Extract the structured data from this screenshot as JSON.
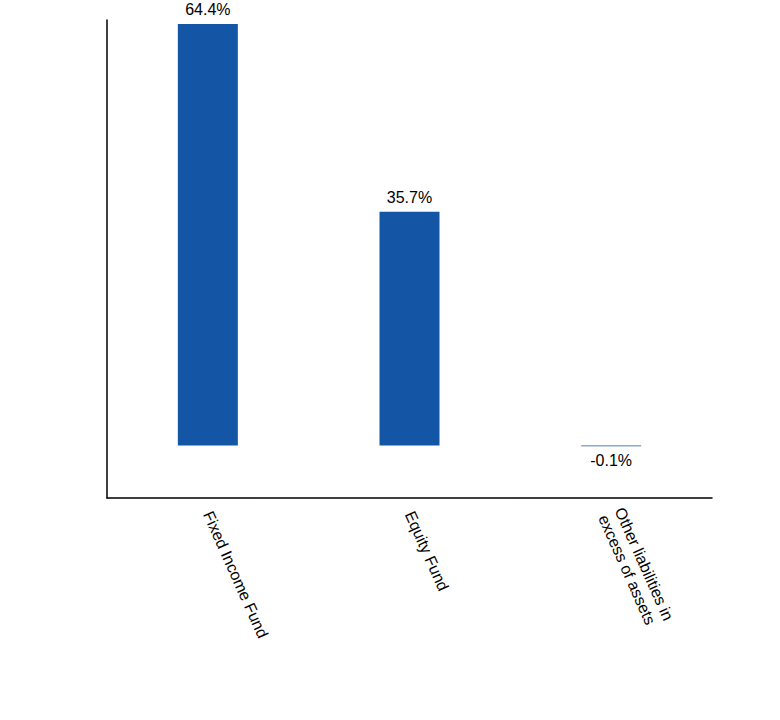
{
  "chart_data": {
    "type": "bar",
    "categories": [
      "Fixed Income Fund",
      "Equity Fund",
      "Other liabilities in excess of assets"
    ],
    "values": [
      64.4,
      35.7,
      -0.1
    ],
    "value_labels": [
      "64.4%",
      "35.7%",
      "-0.1%"
    ],
    "color": "#1555a5",
    "ylim": [
      -8,
      65
    ],
    "data_labels": true,
    "tick_labels": "x",
    "grid": false
  }
}
